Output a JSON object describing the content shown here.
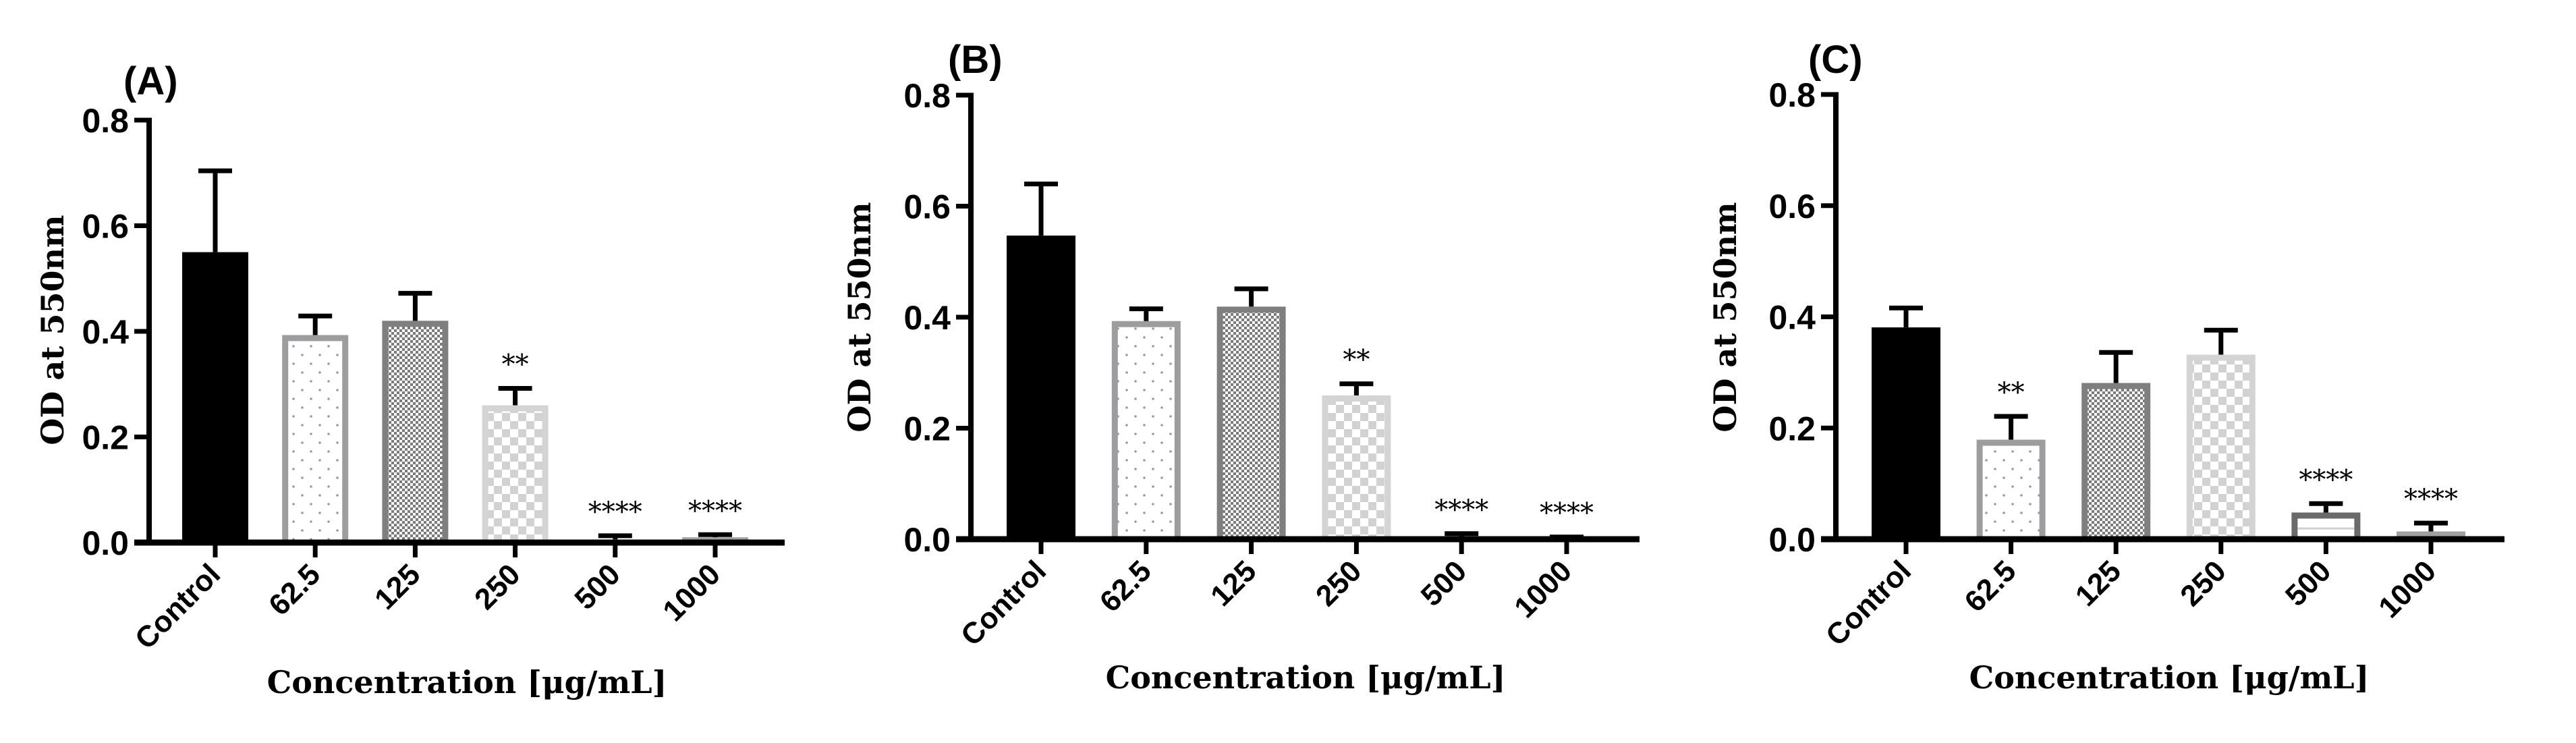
{
  "chart_data": [
    {
      "type": "bar",
      "title": "(A)",
      "xlabel": "Concentration [μg/mL]",
      "ylabel": "OD at 550nm",
      "ylim": [
        0,
        0.8
      ],
      "yticks": [
        "0.0",
        "0.2",
        "0.4",
        "0.6",
        "0.8"
      ],
      "categories": [
        "Control",
        "62.5",
        "125",
        "250",
        "500",
        "1000"
      ],
      "values": [
        0.55,
        0.393,
        0.42,
        0.26,
        0.006,
        0.01
      ],
      "error_upper": [
        0.704,
        0.429,
        0.472,
        0.292,
        0.013,
        0.015
      ],
      "significance": [
        "",
        "",
        "",
        "**",
        "****",
        "****"
      ]
    },
    {
      "type": "bar",
      "title": "(B)",
      "xlabel": "Concentration [μg/mL]",
      "ylabel": "OD at 550nm",
      "ylim": [
        0,
        0.8
      ],
      "yticks": [
        "0.0",
        "0.2",
        "0.4",
        "0.6",
        "0.8"
      ],
      "categories": [
        "Control",
        "62.5",
        "125",
        "250",
        "500",
        "1000"
      ],
      "values": [
        0.547,
        0.393,
        0.419,
        0.259,
        0.004,
        0.003
      ],
      "error_upper": [
        0.64,
        0.415,
        0.451,
        0.28,
        0.01,
        0.004
      ],
      "significance": [
        "",
        "",
        "",
        "**",
        "****",
        "****"
      ]
    },
    {
      "type": "bar",
      "title": "(C)",
      "xlabel": "Concentration [μg/mL]",
      "ylabel": "OD at 550nm",
      "ylim": [
        0,
        0.8
      ],
      "yticks": [
        "0.0",
        "0.2",
        "0.4",
        "0.6",
        "0.8"
      ],
      "categories": [
        "Control",
        "62.5",
        "125",
        "250",
        "500",
        "1000"
      ],
      "values": [
        0.381,
        0.179,
        0.281,
        0.332,
        0.048,
        0.014
      ],
      "error_upper": [
        0.416,
        0.221,
        0.336,
        0.376,
        0.064,
        0.029
      ],
      "significance": [
        "",
        "**",
        "",
        "",
        "****",
        "****"
      ]
    }
  ],
  "bar_styles": [
    {
      "name": "control",
      "fill": "solid",
      "color": "#000000",
      "border": "#000000"
    },
    {
      "name": "62.5",
      "fill": "dots",
      "color": "#9a9a9a",
      "border": "#9d9d9f"
    },
    {
      "name": "125",
      "fill": "fine-checker",
      "color": "#7a7a7a",
      "border": "#7f7f7f"
    },
    {
      "name": "250",
      "fill": "coarse-checker",
      "color": "#d2d2d2",
      "border": "#d4d4d4"
    },
    {
      "name": "500",
      "fill": "line",
      "color": "#d0d0d0",
      "border": "#6a6a6a"
    },
    {
      "name": "1000",
      "fill": "solid",
      "color": "#a0a0a0",
      "border": "#a0a0a0"
    }
  ]
}
